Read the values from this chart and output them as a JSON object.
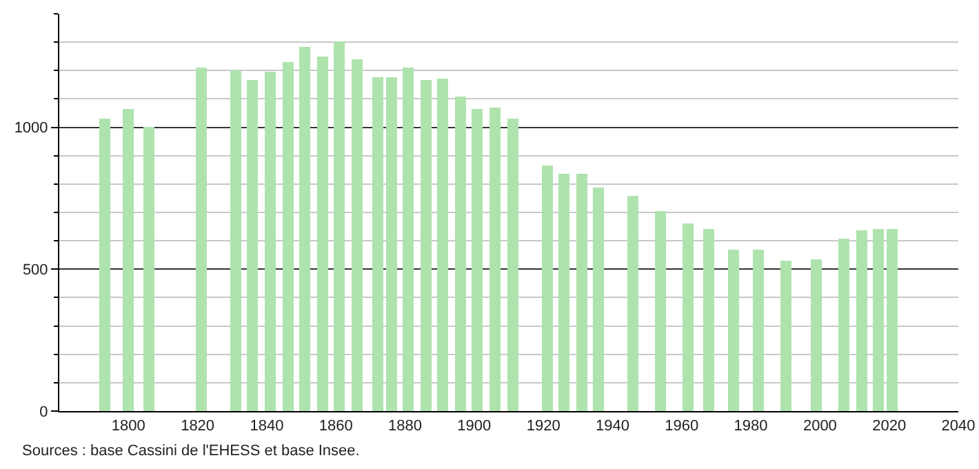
{
  "chart_data": {
    "type": "bar",
    "x": [
      1793,
      1800,
      1806,
      1821,
      1831,
      1836,
      1841,
      1846,
      1851,
      1856,
      1861,
      1866,
      1872,
      1876,
      1881,
      1886,
      1891,
      1896,
      1901,
      1906,
      1911,
      1921,
      1926,
      1931,
      1936,
      1946,
      1954,
      1962,
      1968,
      1975,
      1982,
      1990,
      1999,
      2007,
      2012,
      2017,
      2021
    ],
    "values": [
      1030,
      1063,
      1000,
      1211,
      1201,
      1167,
      1197,
      1230,
      1283,
      1250,
      1303,
      1240,
      1177,
      1177,
      1211,
      1167,
      1172,
      1110,
      1066,
      1071,
      1032,
      863,
      834,
      838,
      789,
      760,
      704,
      659,
      641,
      570,
      570,
      530,
      536,
      609,
      639,
      643,
      641
    ],
    "color": "#aee3ae",
    "xlim": [
      1780,
      2040
    ],
    "xticks": [
      1800,
      1820,
      1840,
      1860,
      1880,
      1900,
      1920,
      1940,
      1960,
      1980,
      2000,
      2020,
      2040
    ],
    "ylim": [
      0,
      1400
    ],
    "yticks": [
      0,
      {
        "value": 100,
        "label": null
      },
      {
        "value": 200,
        "label": null
      },
      {
        "value": 300,
        "label": null
      },
      {
        "value": 400,
        "label": null
      },
      500,
      {
        "value": 600,
        "label": null
      },
      {
        "value": 700,
        "label": null
      },
      {
        "value": 800,
        "label": null
      },
      {
        "value": 900,
        "label": null
      },
      1000,
      {
        "value": 1100,
        "label": null
      },
      {
        "value": 1200,
        "label": null
      },
      {
        "value": 1300,
        "label": null
      },
      {
        "value": 1400,
        "label": null
      }
    ],
    "grid": "y",
    "annotations": [
      "Sources : base Cassini de l'EHESS et base Insee."
    ]
  }
}
